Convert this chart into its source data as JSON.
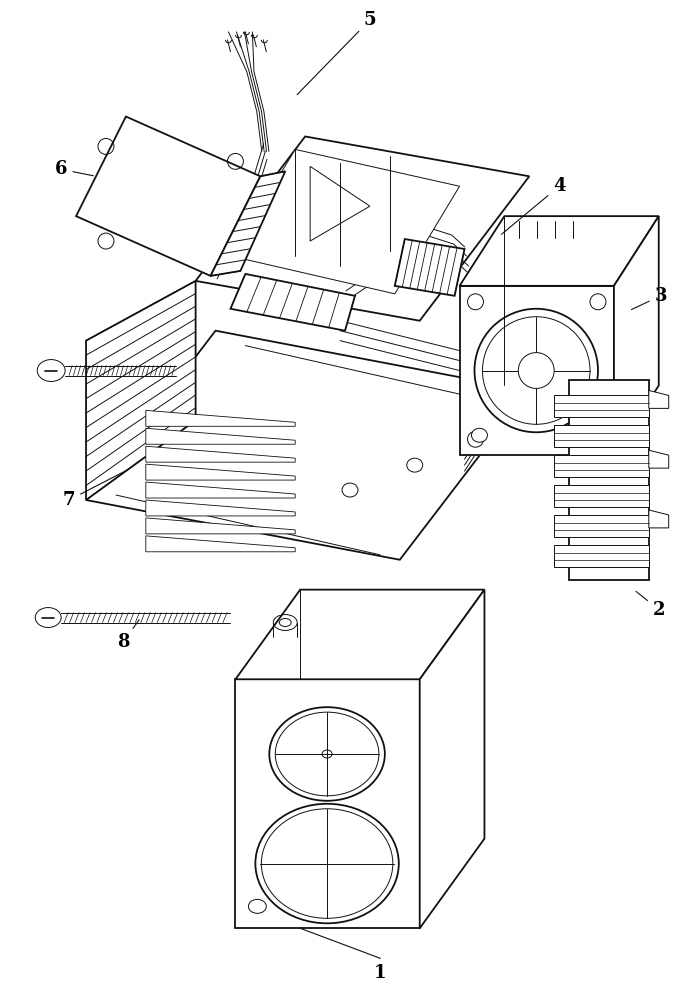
{
  "background_color": "#ffffff",
  "line_color": "#111111",
  "label_color": "#000000",
  "fig_width": 6.94,
  "fig_height": 10.0,
  "dpi": 100,
  "lw_main": 1.3,
  "lw_thin": 0.7,
  "lw_med": 1.0,
  "label_fontsize": 13,
  "annotation_lw": 0.8
}
